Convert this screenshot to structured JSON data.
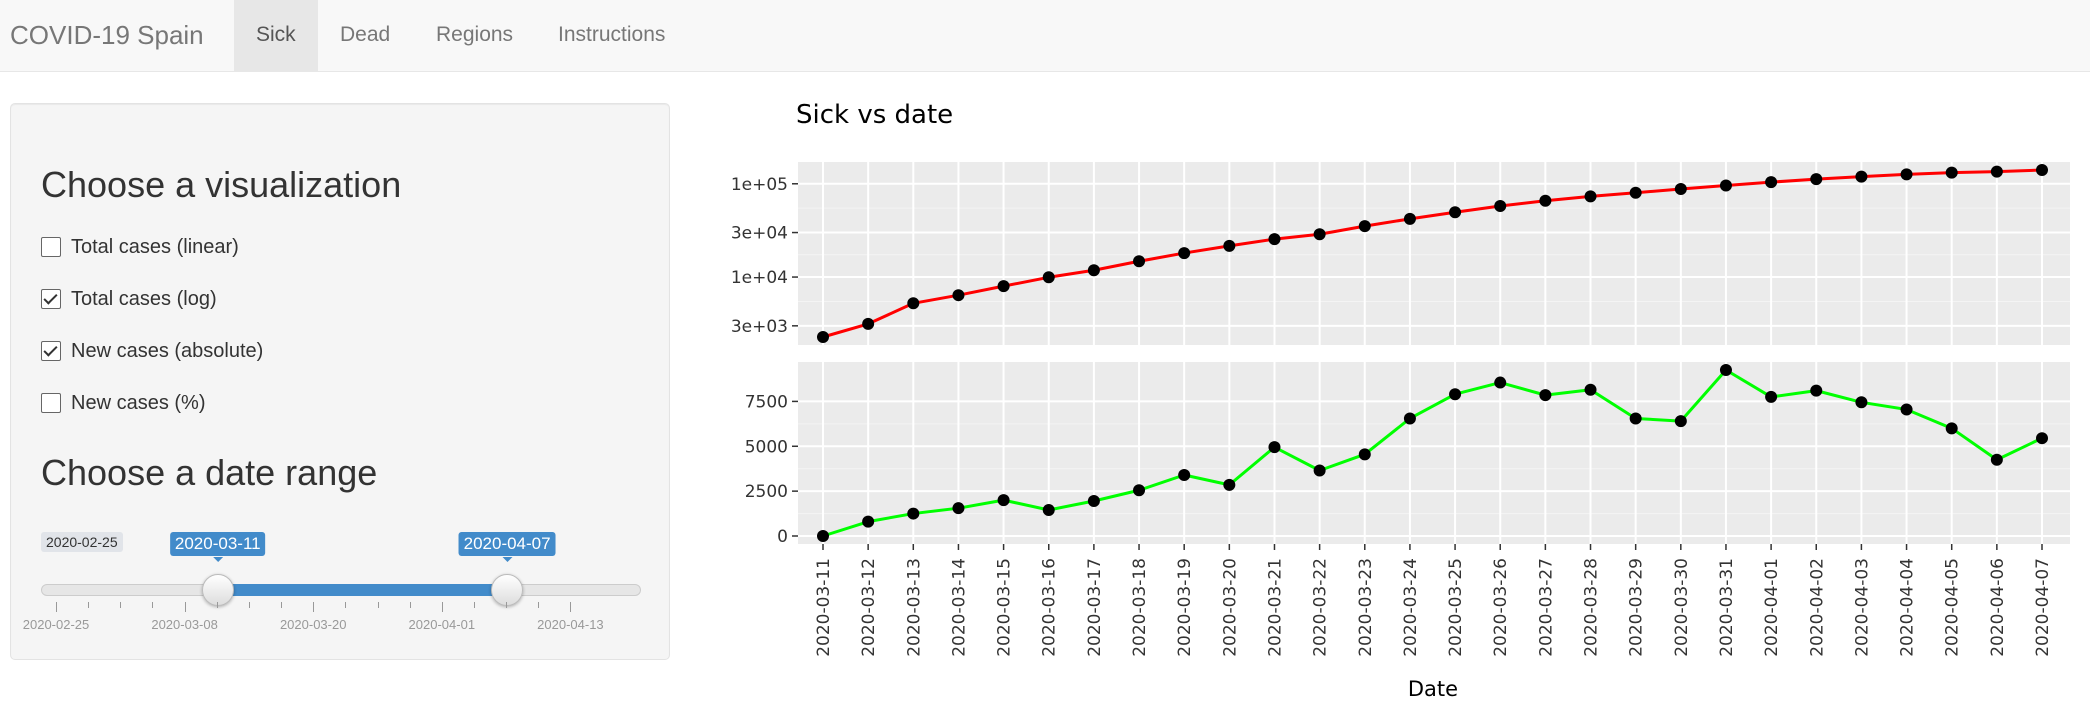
{
  "navbar": {
    "brand": "COVID-19 Spain",
    "tabs": [
      {
        "label": "Sick",
        "active": true
      },
      {
        "label": "Dead",
        "active": false
      },
      {
        "label": "Regions",
        "active": false
      },
      {
        "label": "Instructions",
        "active": false
      }
    ]
  },
  "sidebar": {
    "viz_title": "Choose a visualization",
    "options": [
      {
        "label": "Total cases (linear)",
        "checked": false
      },
      {
        "label": "Total cases (log)",
        "checked": true
      },
      {
        "label": "New cases (absolute)",
        "checked": true
      },
      {
        "label": "New cases (%)",
        "checked": false
      }
    ],
    "date_title": "Choose a date range",
    "slider": {
      "min_label": "2020-02-25",
      "from_label": "2020-03-11",
      "to_label": "2020-04-07",
      "grid_labels": [
        "2020-02-25",
        "2020-03-08",
        "2020-03-20",
        "2020-04-01",
        "2020-04-13"
      ],
      "total_days": 53,
      "from_day": 15,
      "to_day": 42,
      "accent": "#428bca"
    }
  },
  "chart_data": {
    "type": "line",
    "title": "Sick vs date",
    "xlabel": "Date",
    "x": [
      "2020-03-11",
      "2020-03-12",
      "2020-03-13",
      "2020-03-14",
      "2020-03-15",
      "2020-03-16",
      "2020-03-17",
      "2020-03-18",
      "2020-03-19",
      "2020-03-20",
      "2020-03-21",
      "2020-03-22",
      "2020-03-23",
      "2020-03-24",
      "2020-03-25",
      "2020-03-26",
      "2020-03-27",
      "2020-03-28",
      "2020-03-29",
      "2020-03-30",
      "2020-03-31",
      "2020-04-01",
      "2020-04-02",
      "2020-04-03",
      "2020-04-04",
      "2020-04-05",
      "2020-04-06",
      "2020-04-07"
    ],
    "panels": [
      {
        "name": "Total cases (log)",
        "scale": "log",
        "color": "#ff0000",
        "yticks": [
          3000,
          10000,
          30000,
          100000
        ],
        "ytick_labels": [
          "3e+03",
          "1e+04",
          "3e+04",
          "1e+05"
        ],
        "values": [
          2277,
          3146,
          5232,
          6391,
          7988,
          9942,
          11826,
          14769,
          18077,
          21571,
          25496,
          28768,
          35136,
          42058,
          49515,
          57786,
          65719,
          73235,
          80110,
          87956,
          95923,
          104118,
          112065,
          119199,
          126168,
          131646,
          135032,
          140510
        ]
      },
      {
        "name": "New cases (absolute)",
        "scale": "linear",
        "color": "#00ff00",
        "yticks": [
          0,
          2500,
          5000,
          7500
        ],
        "ytick_labels": [
          "0",
          "2500",
          "5000",
          "7500"
        ],
        "values": [
          0,
          800,
          1250,
          1550,
          2000,
          1450,
          1950,
          2550,
          3400,
          2850,
          4950,
          3650,
          4550,
          6550,
          7900,
          8550,
          7850,
          8150,
          6550,
          6400,
          9250,
          7750,
          8100,
          7450,
          7050,
          6000,
          4250,
          5450
        ]
      }
    ],
    "grid": true,
    "point_color": "#000000",
    "panel_bg": "#ebebeb"
  }
}
